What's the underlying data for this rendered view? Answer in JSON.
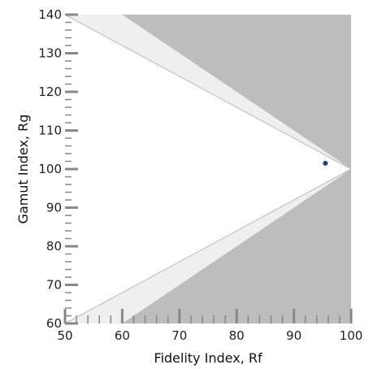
{
  "chart_data": {
    "type": "scatter",
    "xlabel": "Fidelity Index, Rf",
    "ylabel": "Gamut Index, Rg",
    "xlim": [
      50,
      100
    ],
    "ylim": [
      60,
      140
    ],
    "x_ticks": [
      "50",
      "60",
      "70",
      "80",
      "90",
      "100"
    ],
    "y_ticks": [
      "60",
      "70",
      "80",
      "90",
      "100",
      "110",
      "120",
      "130",
      "140"
    ],
    "points": [
      {
        "x": 95.5,
        "y": 101.5
      }
    ],
    "colors": {
      "infeasible_region": "#bdbdbd",
      "boundary_band": "#efefef",
      "point": "#1f3f6e",
      "tick": "#888888"
    }
  }
}
